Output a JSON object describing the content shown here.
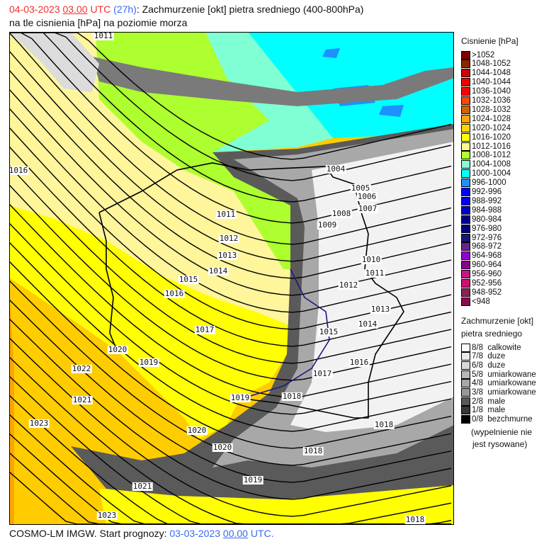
{
  "header": {
    "date": "04-03-2023",
    "time": "03.00",
    "tz": "UTC",
    "lead": "(27h)",
    "title_rest": ": Zachmurzenie [okt] pietra sredniego (400-800hPa)",
    "line2": "na tle cisnienia [hPa] na poziomie morza"
  },
  "map": {
    "field_colors": {
      "1024-1028": "#ffa500",
      "1020-1024": "#ffcc00",
      "1016-1020": "#ffff00",
      "1012-1016": "#fff59b",
      "1008-1012": "#adff2f",
      "1004-1008": "#7fffd4",
      "1000-1004": "#00ffff",
      "996-1000": "#1e90ff"
    },
    "isobar_labels": [
      "1011",
      "1016",
      "1004",
      "1005",
      "1006",
      "1007",
      "1008",
      "1009",
      "1011",
      "1012",
      "1013",
      "1014",
      "1015",
      "1016",
      "1017",
      "1010",
      "1011",
      "1012",
      "1013",
      "1014",
      "1015",
      "1016",
      "1017",
      "1018",
      "1019",
      "1020",
      "1019",
      "1022",
      "1021",
      "1023",
      "1020",
      "1020",
      "1018",
      "1018",
      "1019",
      "1021",
      "1023",
      "1018"
    ]
  },
  "legend_pressure": {
    "title": "Cisnienie [hPa]",
    "items": [
      {
        "label": ">1052",
        "color": "#800000"
      },
      {
        "label": "1048-1052",
        "color": "#8b2500"
      },
      {
        "label": "1044-1048",
        "color": "#cd0000"
      },
      {
        "label": "1040-1044",
        "color": "#ee0000"
      },
      {
        "label": "1036-1040",
        "color": "#ff0000"
      },
      {
        "label": "1032-1036",
        "color": "#ff4500"
      },
      {
        "label": "1028-1032",
        "color": "#cd6600"
      },
      {
        "label": "1024-1028",
        "color": "#ffa500"
      },
      {
        "label": "1020-1024",
        "color": "#ffd700"
      },
      {
        "label": "1016-1020",
        "color": "#ffff00"
      },
      {
        "label": "1012-1016",
        "color": "#fff68f"
      },
      {
        "label": "1008-1012",
        "color": "#adff2f"
      },
      {
        "label": "1004-1008",
        "color": "#7fffd4"
      },
      {
        "label": "1000-1004",
        "color": "#00ffff"
      },
      {
        "label": "996-1000",
        "color": "#1e90ff"
      },
      {
        "label": "992-996",
        "color": "#0000ff"
      },
      {
        "label": "988-992",
        "color": "#0000ee"
      },
      {
        "label": "984-988",
        "color": "#0000cd"
      },
      {
        "label": "980-984",
        "color": "#00008b"
      },
      {
        "label": "976-980",
        "color": "#000080"
      },
      {
        "label": "972-976",
        "color": "#191970"
      },
      {
        "label": "968-972",
        "color": "#68228b"
      },
      {
        "label": "964-968",
        "color": "#9400d3"
      },
      {
        "label": "960-964",
        "color": "#8b008b"
      },
      {
        "label": "956-960",
        "color": "#c71585"
      },
      {
        "label": "952-956",
        "color": "#d01070"
      },
      {
        "label": "948-952",
        "color": "#8b2252"
      },
      {
        "label": "<948",
        "color": "#8b0a50"
      }
    ]
  },
  "legend_cloud": {
    "title1": "Zachmurzenie [okt]",
    "title2": "pietra sredniego",
    "items": [
      {
        "label": "8/8  calkowite",
        "color": "#ffffff"
      },
      {
        "label": "7/8  duze",
        "color": "#e8e8e8"
      },
      {
        "label": "6/8  duze",
        "color": "#d8d8d8"
      },
      {
        "label": "5/8  umiarkowane",
        "color": "#b8b8b8"
      },
      {
        "label": "4/8  umiarkowane",
        "color": "#a8a8a8"
      },
      {
        "label": "3/8  umiarkowane",
        "color": "#989898"
      },
      {
        "label": "2/8  male",
        "color": "#585858"
      },
      {
        "label": "1/8  male",
        "color": "#383838"
      },
      {
        "label": "0/8  bezchmurne",
        "color": "#000000"
      }
    ],
    "note1": "(wypelnienie nie",
    "note2": "jest rysowane)"
  },
  "footer": {
    "prefix": "COSMO-LM IMGW. Start prognozy: ",
    "date": "03-03-2023",
    "time": "00.00",
    "tz": "UTC."
  }
}
